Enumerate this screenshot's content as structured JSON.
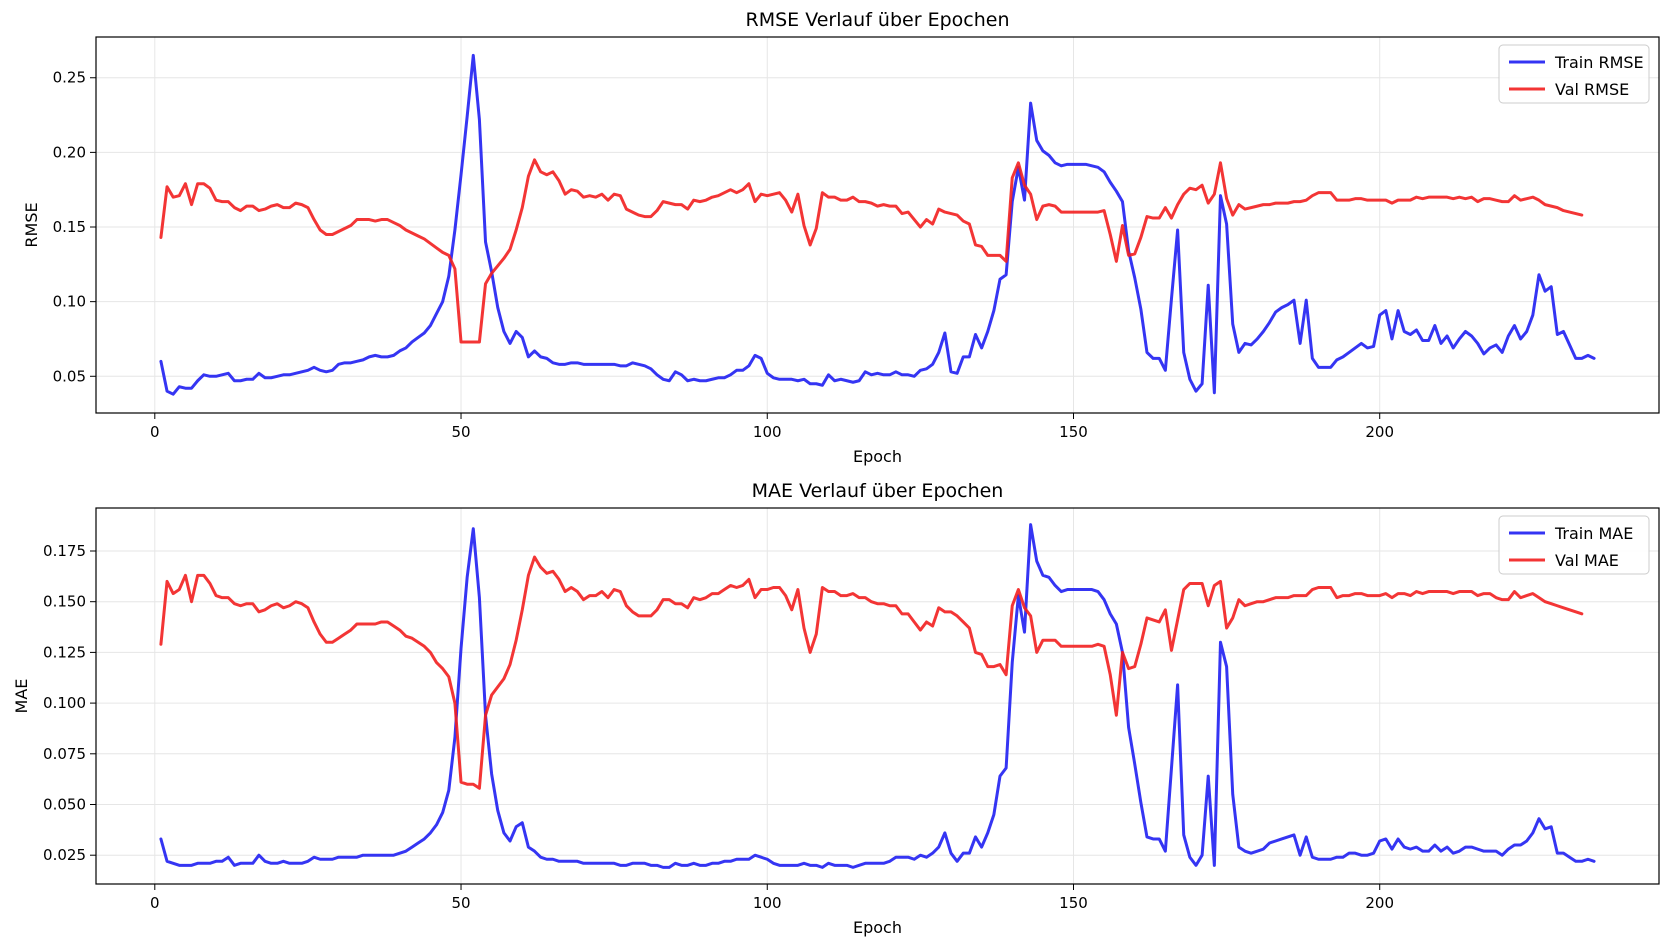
{
  "chart_data": [
    {
      "type": "line",
      "title": "RMSE Verlauf über Epochen",
      "xlabel": "Epoch",
      "ylabel": "RMSE",
      "xlim": [
        -9.6,
        245.6
      ],
      "ylim": [
        0.0254,
        0.2773
      ],
      "x_ticks": [
        0,
        50,
        100,
        150,
        200
      ],
      "x_tick_labels": [
        "0",
        "50",
        "100",
        "150",
        "200"
      ],
      "y_ticks": [
        0.05,
        0.1,
        0.15,
        0.2,
        0.25
      ],
      "y_tick_labels": [
        "0.05",
        "0.10",
        "0.15",
        "0.20",
        "0.25"
      ],
      "grid": true,
      "legend_position": "top-right",
      "x_start": 1,
      "series": [
        {
          "name": "Train RMSE",
          "color": "#1f1ff2",
          "values": [
            0.06,
            0.04,
            0.038,
            0.043,
            0.042,
            0.042,
            0.047,
            0.051,
            0.05,
            0.05,
            0.051,
            0.052,
            0.047,
            0.047,
            0.048,
            0.048,
            0.052,
            0.049,
            0.049,
            0.05,
            0.051,
            0.051,
            0.052,
            0.053,
            0.054,
            0.056,
            0.054,
            0.053,
            0.054,
            0.058,
            0.059,
            0.059,
            0.06,
            0.061,
            0.063,
            0.064,
            0.063,
            0.063,
            0.064,
            0.067,
            0.069,
            0.073,
            0.076,
            0.079,
            0.084,
            0.092,
            0.1,
            0.117,
            0.148,
            0.185,
            0.224,
            0.265,
            0.222,
            0.14,
            0.12,
            0.096,
            0.08,
            0.072,
            0.08,
            0.076,
            0.063,
            0.067,
            0.063,
            0.062,
            0.059,
            0.058,
            0.058,
            0.059,
            0.059,
            0.058,
            0.058,
            0.058,
            0.058,
            0.058,
            0.058,
            0.057,
            0.057,
            0.059,
            0.058,
            0.057,
            0.055,
            0.051,
            0.048,
            0.047,
            0.053,
            0.051,
            0.047,
            0.048,
            0.047,
            0.047,
            0.048,
            0.049,
            0.049,
            0.051,
            0.054,
            0.054,
            0.057,
            0.064,
            0.062,
            0.052,
            0.049,
            0.048,
            0.048,
            0.048,
            0.047,
            0.048,
            0.045,
            0.045,
            0.044,
            0.051,
            0.047,
            0.048,
            0.047,
            0.046,
            0.047,
            0.053,
            0.051,
            0.052,
            0.051,
            0.051,
            0.053,
            0.051,
            0.051,
            0.05,
            0.054,
            0.055,
            0.058,
            0.066,
            0.079,
            0.053,
            0.052,
            0.063,
            0.063,
            0.078,
            0.069,
            0.08,
            0.094,
            0.115,
            0.118,
            0.167,
            0.19,
            0.168,
            0.233,
            0.208,
            0.201,
            0.198,
            0.193,
            0.191,
            0.192,
            0.192,
            0.192,
            0.192,
            0.191,
            0.19,
            0.187,
            0.18,
            0.174,
            0.167,
            0.134,
            0.116,
            0.095,
            0.066,
            0.062,
            0.062,
            0.054,
            0.102,
            0.148,
            0.066,
            0.048,
            0.04,
            0.045,
            0.111,
            0.039,
            0.171,
            0.152,
            0.085,
            0.066,
            0.072,
            0.071,
            0.075,
            0.08,
            0.086,
            0.093,
            0.096,
            0.098,
            0.101,
            0.072,
            0.101,
            0.062,
            0.056,
            0.056,
            0.056,
            0.061,
            0.063,
            0.066,
            0.069,
            0.072,
            0.069,
            0.07,
            0.091,
            0.094,
            0.075,
            0.094,
            0.08,
            0.078,
            0.081,
            0.074,
            0.074,
            0.084,
            0.072,
            0.077,
            0.069,
            0.075,
            0.08,
            0.077,
            0.072,
            0.065,
            0.069,
            0.071,
            0.066,
            0.077,
            0.084,
            0.075,
            0.08,
            0.091,
            0.118,
            0.107,
            0.11,
            0.078,
            0.08,
            0.071,
            0.062,
            0.062,
            0.064,
            0.062
          ]
        },
        {
          "name": "Val RMSE",
          "color": "#f21f1f",
          "values": [
            0.143,
            0.177,
            0.17,
            0.171,
            0.179,
            0.165,
            0.179,
            0.179,
            0.176,
            0.168,
            0.167,
            0.167,
            0.163,
            0.161,
            0.164,
            0.164,
            0.161,
            0.162,
            0.164,
            0.165,
            0.163,
            0.163,
            0.166,
            0.165,
            0.163,
            0.155,
            0.148,
            0.145,
            0.145,
            0.147,
            0.149,
            0.151,
            0.155,
            0.155,
            0.155,
            0.154,
            0.155,
            0.155,
            0.153,
            0.151,
            0.148,
            0.146,
            0.144,
            0.142,
            0.139,
            0.136,
            0.133,
            0.131,
            0.122,
            0.073,
            0.073,
            0.073,
            0.073,
            0.112,
            0.119,
            0.124,
            0.129,
            0.135,
            0.148,
            0.163,
            0.184,
            0.195,
            0.187,
            0.185,
            0.187,
            0.181,
            0.172,
            0.175,
            0.174,
            0.17,
            0.171,
            0.17,
            0.172,
            0.168,
            0.172,
            0.171,
            0.162,
            0.16,
            0.158,
            0.157,
            0.157,
            0.161,
            0.167,
            0.166,
            0.165,
            0.165,
            0.162,
            0.168,
            0.167,
            0.168,
            0.17,
            0.171,
            0.173,
            0.175,
            0.173,
            0.175,
            0.179,
            0.167,
            0.172,
            0.171,
            0.172,
            0.173,
            0.168,
            0.16,
            0.172,
            0.151,
            0.138,
            0.149,
            0.173,
            0.17,
            0.17,
            0.168,
            0.168,
            0.17,
            0.167,
            0.167,
            0.166,
            0.164,
            0.165,
            0.164,
            0.164,
            0.159,
            0.16,
            0.155,
            0.15,
            0.155,
            0.152,
            0.162,
            0.16,
            0.159,
            0.158,
            0.154,
            0.152,
            0.138,
            0.137,
            0.131,
            0.131,
            0.131,
            0.127,
            0.183,
            0.193,
            0.178,
            0.172,
            0.155,
            0.164,
            0.165,
            0.164,
            0.16,
            0.16,
            0.16,
            0.16,
            0.16,
            0.16,
            0.16,
            0.161,
            0.145,
            0.127,
            0.151,
            0.131,
            0.132,
            0.143,
            0.157,
            0.156,
            0.156,
            0.163,
            0.156,
            0.165,
            0.172,
            0.176,
            0.175,
            0.178,
            0.166,
            0.172,
            0.193,
            0.169,
            0.158,
            0.165,
            0.162,
            0.163,
            0.164,
            0.165,
            0.165,
            0.166,
            0.166,
            0.166,
            0.167,
            0.167,
            0.168,
            0.171,
            0.173,
            0.173,
            0.173,
            0.168,
            0.168,
            0.168,
            0.169,
            0.169,
            0.168,
            0.168,
            0.168,
            0.168,
            0.166,
            0.168,
            0.168,
            0.168,
            0.17,
            0.169,
            0.17,
            0.17,
            0.17,
            0.17,
            0.169,
            0.17,
            0.169,
            0.17,
            0.167,
            0.169,
            0.169,
            0.168,
            0.167,
            0.167,
            0.171,
            0.168,
            0.169,
            0.17,
            0.168,
            0.165,
            0.164,
            0.163,
            0.161,
            0.16,
            0.159,
            0.158
          ]
        }
      ]
    },
    {
      "type": "line",
      "title": "MAE Verlauf über Epochen",
      "xlabel": "Epoch",
      "ylabel": "MAE",
      "xlim": [
        -9.6,
        245.6
      ],
      "ylim": [
        0.0108,
        0.1962
      ],
      "x_ticks": [
        0,
        50,
        100,
        150,
        200
      ],
      "x_tick_labels": [
        "0",
        "50",
        "100",
        "150",
        "200"
      ],
      "y_ticks": [
        0.025,
        0.05,
        0.075,
        0.1,
        0.125,
        0.15,
        0.175
      ],
      "y_tick_labels": [
        "0.025",
        "0.050",
        "0.075",
        "0.100",
        "0.125",
        "0.150",
        "0.175"
      ],
      "grid": true,
      "legend_position": "top-right",
      "x_start": 1,
      "series": [
        {
          "name": "Train MAE",
          "color": "#1f1ff2",
          "values": [
            0.033,
            0.022,
            0.021,
            0.02,
            0.02,
            0.02,
            0.021,
            0.021,
            0.021,
            0.022,
            0.022,
            0.024,
            0.02,
            0.021,
            0.021,
            0.021,
            0.025,
            0.022,
            0.021,
            0.021,
            0.022,
            0.021,
            0.021,
            0.021,
            0.022,
            0.024,
            0.023,
            0.023,
            0.023,
            0.024,
            0.024,
            0.024,
            0.024,
            0.025,
            0.025,
            0.025,
            0.025,
            0.025,
            0.025,
            0.026,
            0.027,
            0.029,
            0.031,
            0.033,
            0.036,
            0.04,
            0.046,
            0.057,
            0.083,
            0.127,
            0.162,
            0.186,
            0.152,
            0.094,
            0.065,
            0.047,
            0.036,
            0.032,
            0.039,
            0.041,
            0.029,
            0.027,
            0.024,
            0.023,
            0.023,
            0.022,
            0.022,
            0.022,
            0.022,
            0.021,
            0.021,
            0.021,
            0.021,
            0.021,
            0.021,
            0.02,
            0.02,
            0.021,
            0.021,
            0.021,
            0.02,
            0.02,
            0.019,
            0.019,
            0.021,
            0.02,
            0.02,
            0.021,
            0.02,
            0.02,
            0.021,
            0.021,
            0.022,
            0.022,
            0.023,
            0.023,
            0.023,
            0.025,
            0.024,
            0.023,
            0.021,
            0.02,
            0.02,
            0.02,
            0.02,
            0.021,
            0.02,
            0.02,
            0.019,
            0.021,
            0.02,
            0.02,
            0.02,
            0.019,
            0.02,
            0.021,
            0.021,
            0.021,
            0.021,
            0.022,
            0.024,
            0.024,
            0.024,
            0.023,
            0.025,
            0.024,
            0.026,
            0.029,
            0.036,
            0.026,
            0.022,
            0.026,
            0.026,
            0.034,
            0.029,
            0.036,
            0.045,
            0.064,
            0.068,
            0.12,
            0.153,
            0.135,
            0.188,
            0.17,
            0.163,
            0.162,
            0.158,
            0.155,
            0.156,
            0.156,
            0.156,
            0.156,
            0.156,
            0.155,
            0.151,
            0.144,
            0.139,
            0.125,
            0.088,
            0.07,
            0.051,
            0.034,
            0.033,
            0.033,
            0.027,
            0.068,
            0.109,
            0.035,
            0.024,
            0.02,
            0.025,
            0.064,
            0.02,
            0.13,
            0.118,
            0.055,
            0.029,
            0.027,
            0.026,
            0.027,
            0.028,
            0.031,
            0.032,
            0.033,
            0.034,
            0.035,
            0.025,
            0.034,
            0.024,
            0.023,
            0.023,
            0.023,
            0.024,
            0.024,
            0.026,
            0.026,
            0.025,
            0.025,
            0.026,
            0.032,
            0.033,
            0.028,
            0.033,
            0.029,
            0.028,
            0.029,
            0.027,
            0.027,
            0.03,
            0.027,
            0.029,
            0.026,
            0.027,
            0.029,
            0.029,
            0.028,
            0.027,
            0.027,
            0.027,
            0.025,
            0.028,
            0.03,
            0.03,
            0.032,
            0.036,
            0.043,
            0.038,
            0.039,
            0.026,
            0.026,
            0.024,
            0.022,
            0.022,
            0.023,
            0.022
          ]
        },
        {
          "name": "Val MAE",
          "color": "#f21f1f",
          "values": [
            0.129,
            0.16,
            0.154,
            0.156,
            0.163,
            0.15,
            0.163,
            0.163,
            0.159,
            0.153,
            0.152,
            0.152,
            0.149,
            0.148,
            0.149,
            0.149,
            0.145,
            0.146,
            0.148,
            0.149,
            0.147,
            0.148,
            0.15,
            0.149,
            0.147,
            0.14,
            0.134,
            0.13,
            0.13,
            0.132,
            0.134,
            0.136,
            0.139,
            0.139,
            0.139,
            0.139,
            0.14,
            0.14,
            0.138,
            0.136,
            0.133,
            0.132,
            0.13,
            0.128,
            0.125,
            0.12,
            0.117,
            0.113,
            0.1,
            0.061,
            0.06,
            0.06,
            0.058,
            0.094,
            0.104,
            0.108,
            0.112,
            0.119,
            0.131,
            0.146,
            0.163,
            0.172,
            0.167,
            0.164,
            0.165,
            0.161,
            0.155,
            0.157,
            0.155,
            0.151,
            0.153,
            0.153,
            0.155,
            0.152,
            0.156,
            0.155,
            0.148,
            0.145,
            0.143,
            0.143,
            0.143,
            0.146,
            0.151,
            0.151,
            0.149,
            0.149,
            0.147,
            0.152,
            0.151,
            0.152,
            0.154,
            0.154,
            0.156,
            0.158,
            0.157,
            0.158,
            0.161,
            0.152,
            0.156,
            0.156,
            0.157,
            0.157,
            0.153,
            0.146,
            0.156,
            0.137,
            0.125,
            0.134,
            0.157,
            0.155,
            0.155,
            0.153,
            0.153,
            0.154,
            0.152,
            0.152,
            0.15,
            0.149,
            0.149,
            0.148,
            0.148,
            0.144,
            0.144,
            0.14,
            0.136,
            0.14,
            0.138,
            0.147,
            0.145,
            0.145,
            0.143,
            0.14,
            0.137,
            0.125,
            0.124,
            0.118,
            0.118,
            0.119,
            0.114,
            0.148,
            0.156,
            0.147,
            0.143,
            0.125,
            0.131,
            0.131,
            0.131,
            0.128,
            0.128,
            0.128,
            0.128,
            0.128,
            0.128,
            0.129,
            0.128,
            0.114,
            0.094,
            0.125,
            0.117,
            0.118,
            0.129,
            0.142,
            0.141,
            0.14,
            0.146,
            0.126,
            0.141,
            0.156,
            0.159,
            0.159,
            0.159,
            0.148,
            0.158,
            0.16,
            0.137,
            0.142,
            0.151,
            0.148,
            0.149,
            0.15,
            0.15,
            0.151,
            0.152,
            0.152,
            0.152,
            0.153,
            0.153,
            0.153,
            0.156,
            0.157,
            0.157,
            0.157,
            0.152,
            0.153,
            0.153,
            0.154,
            0.154,
            0.153,
            0.153,
            0.153,
            0.154,
            0.152,
            0.154,
            0.154,
            0.153,
            0.155,
            0.154,
            0.155,
            0.155,
            0.155,
            0.155,
            0.154,
            0.155,
            0.155,
            0.155,
            0.153,
            0.154,
            0.154,
            0.152,
            0.151,
            0.151,
            0.155,
            0.152,
            0.153,
            0.154,
            0.152,
            0.15,
            0.149,
            0.148,
            0.147,
            0.146,
            0.145,
            0.144
          ]
        }
      ]
    }
  ]
}
